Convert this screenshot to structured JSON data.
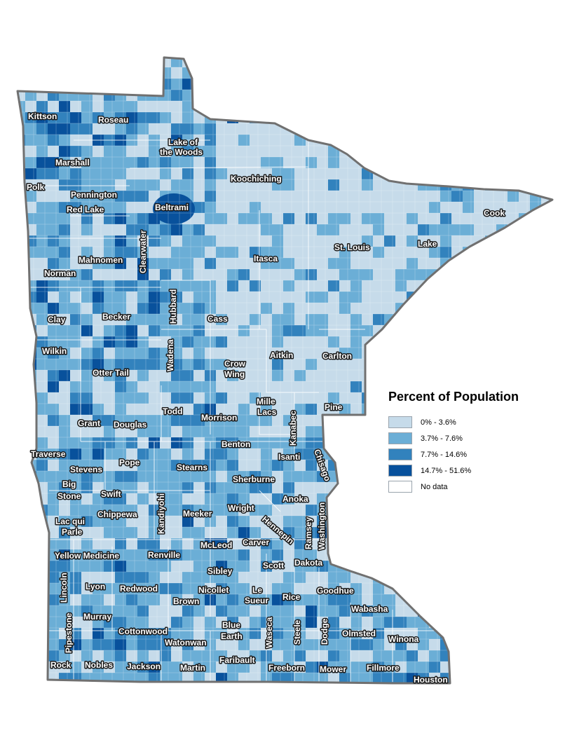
{
  "legend": {
    "title": "Percent of Population",
    "classes": [
      {
        "label": "0% - 3.6%",
        "color": "#c6dbea"
      },
      {
        "label": "3.7% - 7.6%",
        "color": "#6baed6"
      },
      {
        "label": "7.7% - 14.6%",
        "color": "#3282bd"
      },
      {
        "label": "14.7% - 51.6%",
        "color": "#08519c"
      },
      {
        "label": "No data",
        "color": "#ffffff"
      }
    ]
  },
  "counties": {
    "kittson": "Kittson",
    "roseau": "Roseau",
    "lake_of_the_woods_1": "Lake of",
    "lake_of_the_woods_2": "the Woods",
    "marshall": "Marshall",
    "koochiching": "Koochiching",
    "polk": "Polk",
    "pennington": "Pennington",
    "beltrami": "Beltrami",
    "red_lake": "Red Lake",
    "cook": "Cook",
    "clearwater": "Clearwater",
    "lake": "Lake",
    "st_louis": "St. Louis",
    "mahnomen": "Mahnomen",
    "itasca": "Itasca",
    "norman": "Norman",
    "hubbard": "Hubbard",
    "clay": "Clay",
    "becker": "Becker",
    "cass": "Cass",
    "wilkin": "Wilkin",
    "wadena": "Wadena",
    "aitkin": "Aitkin",
    "carlton": "Carlton",
    "crow_wing_1": "Crow",
    "crow_wing_2": "Wing",
    "otter_tail": "Otter Tail",
    "mille_lacs_1": "Mille",
    "mille_lacs_2": "Lacs",
    "todd": "Todd",
    "kanabec": "Kanabec",
    "pine": "Pine",
    "grant": "Grant",
    "douglas": "Douglas",
    "morrison": "Morrison",
    "benton": "Benton",
    "traverse": "Traverse",
    "isanti": "Isanti",
    "chisago": "Chisago",
    "pope": "Pope",
    "stevens": "Stevens",
    "stearns": "Stearns",
    "big_stone_1": "Big",
    "big_stone_2": "Stone",
    "sherburne": "Sherburne",
    "swift": "Swift",
    "anoka": "Anoka",
    "kandiyohi": "Kandiyohi",
    "wright": "Wright",
    "chippewa": "Chippewa",
    "meeker": "Meeker",
    "washington": "Washington",
    "hennepin": "Hennepin",
    "ramsey": "Ramsey",
    "lac_qui_parle_1": "Lac qui",
    "lac_qui_parle_2": "Parle",
    "mcleod": "McLeod",
    "carver": "Carver",
    "yellow_medicine": "Yellow Medicine",
    "renville": "Renville",
    "dakota": "Dakota",
    "scott": "Scott",
    "sibley": "Sibley",
    "lincoln": "Lincoln",
    "lyon": "Lyon",
    "redwood": "Redwood",
    "nicollet": "Nicollet",
    "le_sueur_1": "Le",
    "le_sueur_2": "Sueur",
    "goodhue": "Goodhue",
    "rice": "Rice",
    "brown": "Brown",
    "wabasha": "Wabasha",
    "murray": "Murray",
    "pipestone": "Pipestone",
    "blue_earth_1": "Blue",
    "blue_earth_2": "Earth",
    "cottonwood": "Cottonwood",
    "waseca": "Waseca",
    "steele": "Steele",
    "dodge": "Dodge",
    "olmsted": "Olmsted",
    "winona": "Winona",
    "watonwan": "Watonwan",
    "rock": "Rock",
    "nobles": "Nobles",
    "jackson": "Jackson",
    "martin": "Martin",
    "faribault": "Faribault",
    "freeborn": "Freeborn",
    "mower": "Mower",
    "fillmore": "Fillmore",
    "houston": "Houston"
  }
}
